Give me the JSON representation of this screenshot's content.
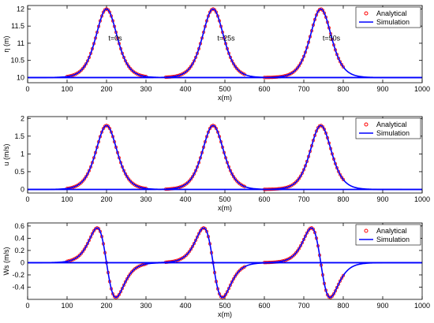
{
  "chart_data": [
    {
      "type": "line",
      "ylabel": "η (m)",
      "xlabel": "x(m)",
      "xlim": [
        0,
        1000
      ],
      "ylim": [
        9.85,
        12.1
      ],
      "xticks": [
        0,
        100,
        200,
        300,
        400,
        500,
        600,
        700,
        800,
        900,
        1000
      ],
      "yticks": [
        10,
        10.5,
        11,
        11.5,
        12
      ],
      "legend": {
        "position": "top-right",
        "entries": [
          "Analytical",
          "Simulation"
        ]
      },
      "annotations": [
        {
          "text": "t=0s",
          "x": 222,
          "y": 11.08
        },
        {
          "text": "t=25s",
          "x": 503,
          "y": 11.08
        },
        {
          "text": "t=50s",
          "x": 770,
          "y": 11.08
        }
      ],
      "series": [
        {
          "name": "Analytical",
          "style": "markers",
          "color": "#ff0000",
          "pulses": [
            {
              "center": 200,
              "x_range": [
                100,
                300
              ],
              "step": 4
            },
            {
              "center": 470,
              "x_range": [
                350,
                550
              ],
              "step": 4
            },
            {
              "center": 743,
              "x_range": [
                600,
                800
              ],
              "step": 4
            }
          ]
        },
        {
          "name": "Simulation",
          "style": "line",
          "color": "#0000ff",
          "pulses": [
            {
              "center": 200,
              "x_range": [
                0,
                1000
              ]
            },
            {
              "center": 470,
              "x_range": [
                0,
                1000
              ]
            },
            {
              "center": 743,
              "x_range": [
                0,
                1000
              ]
            }
          ]
        }
      ],
      "profile": {
        "kind": "sech2",
        "baseline": 10,
        "amplitude": 2,
        "width": 36
      }
    },
    {
      "type": "line",
      "ylabel": "u (m/s)",
      "xlabel": "x(m)",
      "xlim": [
        0,
        1000
      ],
      "ylim": [
        -0.1,
        2.05
      ],
      "xticks": [
        0,
        100,
        200,
        300,
        400,
        500,
        600,
        700,
        800,
        900,
        1000
      ],
      "yticks": [
        0,
        0.5,
        1,
        1.5,
        2
      ],
      "legend": {
        "position": "top-right",
        "entries": [
          "Analytical",
          "Simulation"
        ]
      },
      "series": [
        {
          "name": "Analytical",
          "style": "markers",
          "color": "#ff0000",
          "pulses": [
            {
              "center": 200,
              "x_range": [
                100,
                300
              ],
              "step": 4
            },
            {
              "center": 470,
              "x_range": [
                350,
                550
              ],
              "step": 4
            },
            {
              "center": 743,
              "x_range": [
                600,
                800
              ],
              "step": 4
            }
          ]
        },
        {
          "name": "Simulation",
          "style": "line",
          "color": "#0000ff",
          "pulses": [
            {
              "center": 200,
              "x_range": [
                0,
                1000
              ]
            },
            {
              "center": 470,
              "x_range": [
                0,
                1000
              ]
            },
            {
              "center": 743,
              "x_range": [
                0,
                1000
              ]
            }
          ]
        }
      ],
      "profile": {
        "kind": "sech2",
        "baseline": 0,
        "amplitude": 1.8,
        "width": 36
      }
    },
    {
      "type": "line",
      "ylabel": "Ws (m/s)",
      "xlabel": "x(m)",
      "xlim": [
        0,
        1000
      ],
      "ylim": [
        -0.6,
        0.65
      ],
      "xticks": [
        0,
        100,
        200,
        300,
        400,
        500,
        600,
        700,
        800,
        900,
        1000
      ],
      "yticks": [
        -0.4,
        -0.2,
        0,
        0.2,
        0.4,
        0.6
      ],
      "legend": {
        "position": "top-right",
        "entries": [
          "Analytical",
          "Simulation"
        ]
      },
      "series": [
        {
          "name": "Analytical",
          "style": "markers",
          "color": "#ff0000",
          "pulses": [
            {
              "center": 200,
              "x_range": [
                100,
                300
              ],
              "step": 4
            },
            {
              "center": 470,
              "x_range": [
                350,
                550
              ],
              "step": 4
            },
            {
              "center": 743,
              "x_range": [
                600,
                800
              ],
              "step": 4
            }
          ]
        },
        {
          "name": "Simulation",
          "style": "line",
          "color": "#0000ff",
          "pulses": [
            {
              "center": 200,
              "x_range": [
                0,
                1000
              ]
            },
            {
              "center": 470,
              "x_range": [
                0,
                1000
              ]
            },
            {
              "center": 743,
              "x_range": [
                0,
                1000
              ]
            }
          ]
        }
      ],
      "profile": {
        "kind": "sech2-derivative",
        "baseline": 0,
        "amplitude": 0.57,
        "width": 36
      }
    }
  ]
}
